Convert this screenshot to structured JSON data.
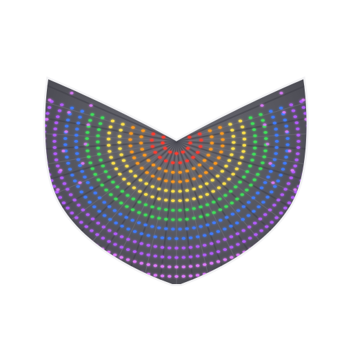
{
  "product": {
    "subject": "led-rainbow-isis-wings",
    "background_color": "#ffffff",
    "fabric_color": "#5e5e66",
    "fabric_dark_color": "#3f3f47",
    "outline_color": "#f2f2f4"
  },
  "led_bands": [
    {
      "name": "red",
      "color": "#ff3b30"
    },
    {
      "name": "orange",
      "color": "#ff9a1f"
    },
    {
      "name": "yellow",
      "color": "#ffe34a"
    },
    {
      "name": "green",
      "color": "#3fe05a"
    },
    {
      "name": "blue",
      "color": "#3f7bff"
    },
    {
      "name": "violet",
      "color": "#b45cff"
    },
    {
      "name": "magenta",
      "color": "#e07bff"
    }
  ]
}
